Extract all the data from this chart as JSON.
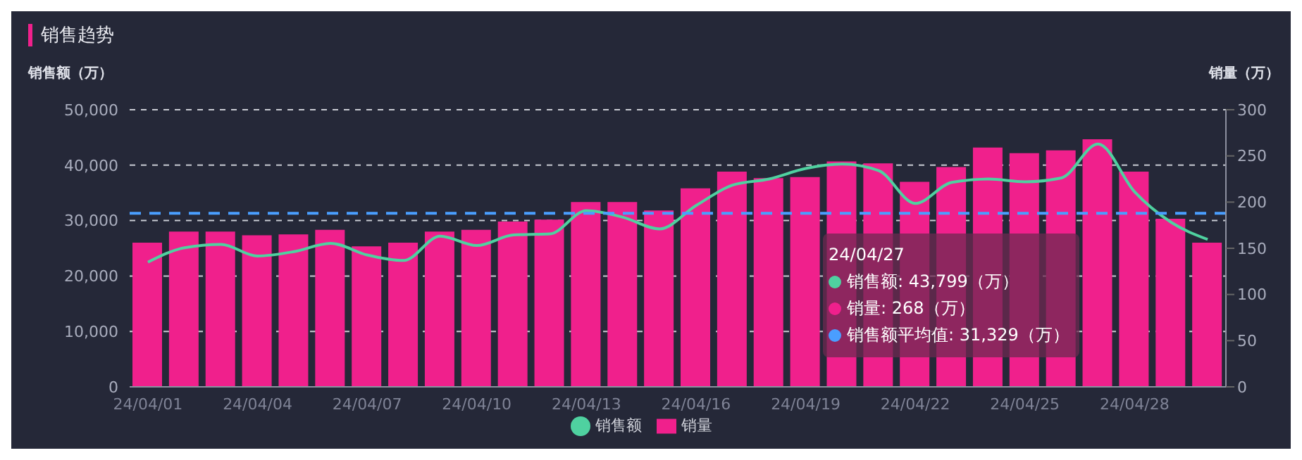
{
  "chart_data": {
    "type": "bar",
    "title": "销售趋势",
    "ylabel": "销售额（万）",
    "y2label": "销量（万）",
    "categories": [
      "24/04/01",
      null,
      null,
      "24/04/04",
      null,
      null,
      "24/04/07",
      null,
      null,
      "24/04/10",
      null,
      null,
      "24/04/13",
      null,
      null,
      "24/04/16",
      null,
      null,
      "24/04/19",
      null,
      null,
      "24/04/22",
      null,
      null,
      "24/04/25",
      null,
      null,
      "24/04/28",
      null,
      null
    ],
    "series": [
      {
        "name": "销售额",
        "type": "line",
        "color": "#4fd1a0",
        "values": [
          22500,
          25100,
          25700,
          23600,
          24400,
          25900,
          23800,
          22800,
          27200,
          25500,
          27400,
          27600,
          31800,
          30600,
          28500,
          32700,
          36400,
          37500,
          39400,
          40200,
          39000,
          33100,
          36900,
          37500,
          37000,
          37700,
          43799,
          35200,
          29700,
          26600
        ]
      },
      {
        "name": "销量",
        "axis": "y2",
        "color": "#f0208c",
        "values": [
          156,
          168,
          168,
          164,
          165,
          170,
          152,
          156,
          168,
          170,
          179,
          181,
          200,
          200,
          191,
          215,
          233,
          226,
          227,
          244,
          242,
          222,
          238,
          259,
          253,
          256,
          268,
          233,
          182,
          156
        ]
      }
    ],
    "ylim": [
      0,
      50000
    ],
    "yticks": [
      0,
      {
        "value": 10000,
        "label": "10,000"
      },
      {
        "value": 20000,
        "label": "20,000"
      },
      {
        "value": 30000,
        "label": "30,000"
      },
      {
        "value": 40000,
        "label": "40,000"
      },
      {
        "value": 50000,
        "label": "50,000"
      }
    ],
    "y2lim": [
      0,
      300
    ],
    "y2ticks": [
      0,
      50,
      100,
      150,
      200,
      250,
      300
    ],
    "ref_lines": [
      {
        "axis": "y",
        "value": 31329,
        "color": "#4a9eff",
        "line_style": "dashed"
      }
    ],
    "annotations": [
      "24/04/27",
      "销售额: 43,799（万）",
      "销量: 268（万）",
      "销售额平均值: 31,329（万）"
    ],
    "grid": "y",
    "legend": "bottom",
    "line_style": "solid"
  }
}
